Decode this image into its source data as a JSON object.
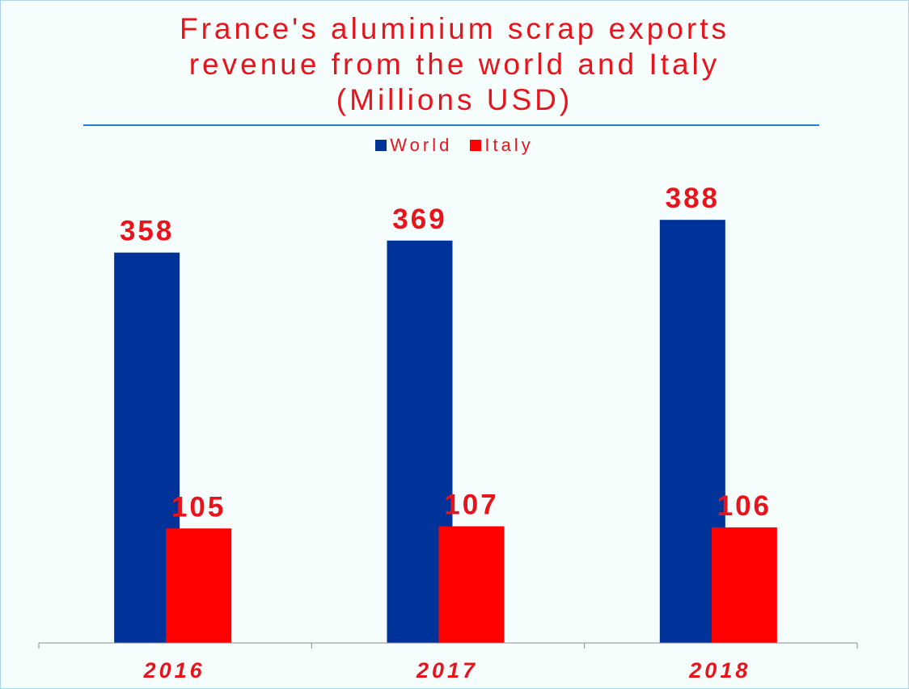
{
  "chart_data": {
    "type": "bar",
    "title_lines": [
      "France's aluminium scrap exports",
      "revenue from the world and Italy",
      "(Millions USD)"
    ],
    "categories": [
      "2016",
      "2017",
      "2018"
    ],
    "series": [
      {
        "name": "World",
        "values": [
          358,
          369,
          388
        ],
        "color": "#003399"
      },
      {
        "name": "Italy",
        "values": [
          105,
          107,
          106
        ],
        "color": "#ff0000"
      }
    ],
    "label_color": "#e8141b",
    "ylim": [
      0,
      400
    ],
    "grid": false,
    "legend_position": "top"
  }
}
